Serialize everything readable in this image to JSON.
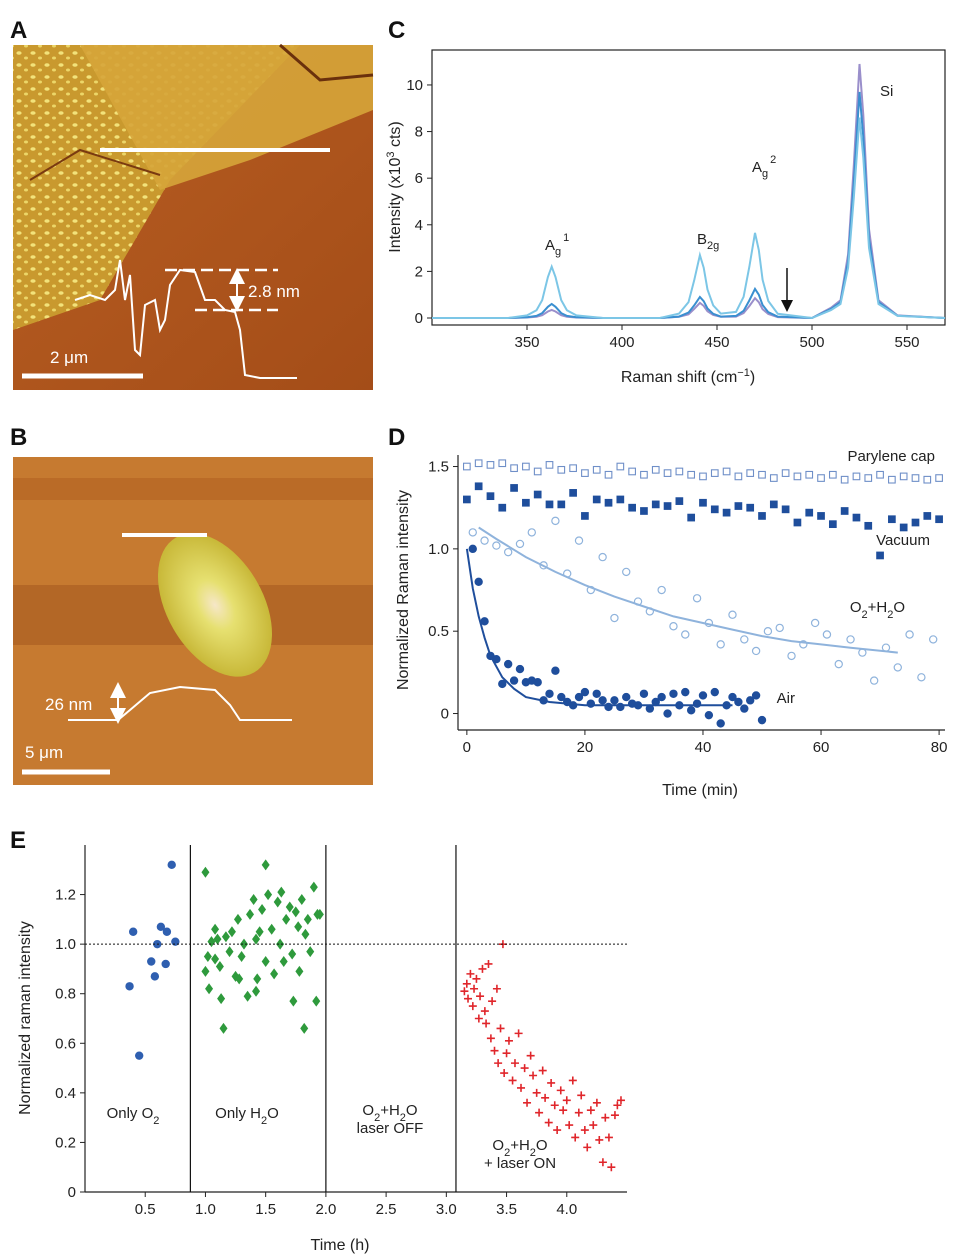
{
  "panels": {
    "A": {
      "label": "A",
      "scale_bar": "2 μm",
      "step_height": "2.8 nm"
    },
    "B": {
      "label": "B",
      "scale_bar": "5 μm",
      "step_height": "26 nm"
    }
  },
  "chart_data": [
    {
      "panel": "C",
      "type": "line",
      "x_label": [
        "Raman shift (cm",
        "−1",
        ")"
      ],
      "y_label": [
        "Intensity (x10",
        "3",
        " cts)"
      ],
      "x": [
        300,
        340,
        350,
        355,
        358,
        361,
        363,
        365,
        368,
        371,
        376,
        390,
        420,
        430,
        435,
        438,
        441,
        443,
        445,
        448,
        452,
        460,
        464,
        467,
        470,
        472,
        474,
        477,
        482,
        500,
        510,
        515,
        519,
        522,
        525,
        527,
        530,
        535,
        545,
        570
      ],
      "series": [
        {
          "color": "#7cc6e6",
          "values": [
            0,
            0,
            0.11,
            0.33,
            0.77,
            1.76,
            2.2,
            1.76,
            0.77,
            0.33,
            0.11,
            0,
            0,
            0.19,
            0.68,
            1.62,
            2.7,
            2.16,
            1.22,
            0.54,
            0.19,
            0.26,
            0.91,
            2.19,
            3.65,
            2.92,
            1.64,
            0.73,
            0.18,
            0,
            0.34,
            0.6,
            2.15,
            5.16,
            8.6,
            6.88,
            3.01,
            0.6,
            0.09,
            0
          ]
        },
        {
          "color": "#3a8fd0",
          "values": [
            0,
            0,
            0.03,
            0.09,
            0.21,
            0.48,
            0.6,
            0.48,
            0.21,
            0.09,
            0.03,
            0,
            0,
            0.06,
            0.23,
            0.54,
            0.9,
            0.72,
            0.41,
            0.18,
            0.06,
            0.09,
            0.31,
            0.75,
            1.25,
            1,
            0.56,
            0.25,
            0.06,
            0,
            0.39,
            0.68,
            2.43,
            5.82,
            9.7,
            7.76,
            3.4,
            0.68,
            0.1,
            0
          ]
        },
        {
          "color": "#9a8fcb",
          "values": [
            0,
            0,
            0.02,
            0.05,
            0.12,
            0.28,
            0.35,
            0.28,
            0.12,
            0.05,
            0.02,
            0,
            0,
            0.05,
            0.16,
            0.39,
            0.65,
            0.52,
            0.29,
            0.13,
            0.05,
            0.06,
            0.21,
            0.51,
            0.85,
            0.68,
            0.38,
            0.17,
            0.04,
            0,
            0.44,
            0.76,
            2.73,
            6.54,
            10.9,
            8.72,
            3.82,
            0.76,
            0.11,
            0
          ]
        }
      ],
      "peak_labels": [
        {
          "base": "A",
          "sub": "g",
          "sup": "1"
        },
        {
          "base": "B",
          "sub": "2g"
        },
        {
          "base": "A",
          "sub": "g",
          "sup": "2"
        },
        {
          "base": "Si"
        }
      ],
      "xlim": [
        300,
        570
      ],
      "ylim": [
        -0.3,
        11.5
      ],
      "xticks": [
        350,
        400,
        450,
        500,
        550
      ],
      "yticks": [
        0,
        2,
        4,
        6,
        8,
        10
      ]
    },
    {
      "panel": "D",
      "type": "scatter",
      "x_label": "Time (min)",
      "y_label": "Normalized Raman intensity",
      "series": [
        {
          "name": "Parylene cap",
          "color": "#6f8fc8",
          "marker": "square",
          "filled": false,
          "x": [
            0,
            2,
            4,
            6,
            8,
            10,
            12,
            14,
            16,
            18,
            20,
            22,
            24,
            26,
            28,
            30,
            32,
            34,
            36,
            38,
            40,
            42,
            44,
            46,
            48,
            50,
            52,
            54,
            56,
            58,
            60,
            62,
            64,
            66,
            68,
            70,
            72,
            74,
            76,
            78,
            80
          ],
          "values": [
            1.5,
            1.52,
            1.51,
            1.52,
            1.49,
            1.5,
            1.47,
            1.51,
            1.48,
            1.49,
            1.46,
            1.48,
            1.45,
            1.5,
            1.47,
            1.45,
            1.48,
            1.46,
            1.47,
            1.45,
            1.44,
            1.46,
            1.47,
            1.44,
            1.46,
            1.45,
            1.43,
            1.46,
            1.44,
            1.45,
            1.43,
            1.45,
            1.42,
            1.44,
            1.43,
            1.45,
            1.42,
            1.44,
            1.43,
            1.42,
            1.43
          ]
        },
        {
          "name": "Vacuum",
          "color": "#1f4e9c",
          "marker": "square",
          "filled": true,
          "x": [
            0,
            2,
            4,
            6,
            8,
            10,
            12,
            14,
            16,
            18,
            20,
            22,
            24,
            26,
            28,
            30,
            32,
            34,
            36,
            38,
            40,
            42,
            44,
            46,
            48,
            50,
            52,
            54,
            56,
            58,
            60,
            62,
            64,
            66,
            68,
            70,
            72,
            74,
            76,
            78,
            80
          ],
          "values": [
            1.3,
            1.38,
            1.32,
            1.25,
            1.37,
            1.28,
            1.33,
            1.27,
            1.27,
            1.34,
            1.2,
            1.3,
            1.28,
            1.3,
            1.25,
            1.23,
            1.27,
            1.26,
            1.29,
            1.19,
            1.28,
            1.24,
            1.22,
            1.26,
            1.25,
            1.2,
            1.27,
            1.24,
            1.16,
            1.22,
            1.2,
            1.15,
            1.23,
            1.19,
            1.14,
            0.96,
            1.18,
            1.13,
            1.16,
            1.2,
            1.18
          ]
        },
        {
          "name": "O2+H2O",
          "color": "#8fb3dc",
          "marker": "circle",
          "filled": false,
          "x": [
            1,
            3,
            5,
            7,
            9,
            11,
            13,
            15,
            17,
            19,
            21,
            23,
            25,
            27,
            29,
            31,
            33,
            35,
            37,
            39,
            41,
            43,
            45,
            47,
            49,
            51,
            53,
            55,
            57,
            59,
            61,
            63,
            65,
            67,
            69,
            71,
            73,
            75,
            77,
            79
          ],
          "values": [
            1.1,
            1.05,
            1.02,
            0.98,
            1.03,
            1.1,
            0.9,
            1.17,
            0.85,
            1.05,
            0.75,
            0.95,
            0.58,
            0.86,
            0.68,
            0.62,
            0.75,
            0.53,
            0.48,
            0.7,
            0.55,
            0.42,
            0.6,
            0.45,
            0.38,
            0.5,
            0.52,
            0.35,
            0.42,
            0.55,
            0.48,
            0.3,
            0.45,
            0.37,
            0.2,
            0.4,
            0.28,
            0.48,
            0.22,
            0.45
          ],
          "fit": {
            "x": [
              2,
              5,
              10,
              15,
              20,
              25,
              30,
              35,
              40,
              45,
              50,
              55,
              60,
              65,
              73
            ],
            "values": [
              1.13,
              1.06,
              0.95,
              0.86,
              0.78,
              0.71,
              0.65,
              0.59,
              0.55,
              0.51,
              0.47,
              0.44,
              0.42,
              0.4,
              0.37
            ]
          }
        },
        {
          "name": "Air",
          "color": "#1f4e9c",
          "marker": "circle",
          "filled": true,
          "x": [
            1,
            2,
            3,
            4,
            5,
            6,
            7,
            8,
            9,
            10,
            11,
            12,
            13,
            14,
            15,
            16,
            17,
            18,
            19,
            20,
            21,
            22,
            23,
            24,
            25,
            26,
            27,
            28,
            29,
            30,
            31,
            32,
            33,
            34,
            35,
            36,
            37,
            38,
            39,
            40,
            41,
            42,
            43,
            44,
            45,
            46,
            47,
            48,
            49,
            50
          ],
          "values": [
            1.0,
            0.8,
            0.56,
            0.35,
            0.33,
            0.18,
            0.3,
            0.2,
            0.27,
            0.19,
            0.2,
            0.19,
            0.08,
            0.12,
            0.26,
            0.1,
            0.07,
            0.05,
            0.1,
            0.13,
            0.06,
            0.12,
            0.08,
            0.04,
            0.08,
            0.04,
            0.1,
            0.06,
            0.05,
            0.12,
            0.03,
            0.07,
            0.1,
            0,
            0.12,
            0.05,
            0.13,
            0.02,
            0.06,
            0.11,
            -0.01,
            0.13,
            -0.06,
            0.05,
            0.1,
            0.07,
            0.03,
            0.08,
            0.11,
            -0.04
          ],
          "fit": {
            "x": [
              0,
              1,
              2,
              3,
              4,
              6,
              8,
              10,
              14,
              20,
              30,
              45
            ],
            "values": [
              1.0,
              0.76,
              0.59,
              0.46,
              0.35,
              0.22,
              0.15,
              0.1,
              0.07,
              0.05,
              0.05,
              0.05
            ]
          }
        }
      ],
      "xlim": [
        -1.5,
        81
      ],
      "ylim": [
        -0.1,
        1.57
      ],
      "xticks": [
        0,
        20,
        40,
        60,
        80
      ],
      "yticks": [
        0,
        0.5,
        {
          "value": 1,
          "label": "1.0"
        },
        1.5
      ]
    },
    {
      "panel": "E",
      "type": "scatter",
      "x_label": "Time (h)",
      "y_label": "Normalized raman intensity",
      "series": [
        {
          "color": "#2f5fb0",
          "marker": "circle",
          "filled": true,
          "x": [
            0.37,
            0.4,
            0.45,
            0.55,
            0.58,
            0.6,
            0.63,
            0.67,
            0.68,
            0.72,
            0.75
          ],
          "values": [
            0.83,
            1.05,
            0.55,
            0.93,
            0.87,
            1.0,
            1.07,
            0.92,
            1.05,
            1.32,
            1.01
          ]
        },
        {
          "color": "#2e9a3c",
          "marker": "diamond",
          "filled": true,
          "x": [
            1.0,
            1.0,
            1.02,
            1.03,
            1.05,
            1.08,
            1.1,
            1.12,
            1.13,
            1.15,
            1.17,
            1.2,
            1.22,
            1.25,
            1.27,
            1.3,
            1.32,
            1.35,
            1.37,
            1.4,
            1.42,
            1.43,
            1.45,
            1.47,
            1.5,
            1.5,
            1.52,
            1.55,
            1.57,
            1.6,
            1.62,
            1.63,
            1.65,
            1.67,
            1.7,
            1.72,
            1.73,
            1.75,
            1.77,
            1.78,
            1.8,
            1.82,
            1.83,
            1.85,
            1.87,
            1.9,
            1.92,
            1.93,
            1.95,
            1.42,
            1.28,
            1.08
          ],
          "values": [
            1.29,
            0.89,
            0.95,
            0.82,
            1.01,
            1.06,
            1.02,
            0.91,
            0.78,
            0.66,
            1.03,
            0.97,
            1.05,
            0.87,
            1.1,
            0.95,
            1.0,
            0.79,
            1.12,
            1.18,
            1.02,
            0.86,
            1.05,
            1.14,
            1.32,
            0.93,
            1.2,
            1.06,
            0.88,
            1.17,
            1.0,
            1.21,
            0.93,
            1.1,
            1.15,
            0.96,
            0.77,
            1.13,
            1.07,
            0.89,
            1.18,
            0.66,
            1.04,
            1.1,
            0.97,
            1.23,
            0.77,
            1.12,
            1.12,
            0.81,
            0.86,
            0.94
          ]
        },
        {
          "color": "#e0262b",
          "marker": "plus",
          "filled": true,
          "x": [
            3.15,
            3.17,
            3.18,
            3.2,
            3.22,
            3.23,
            3.25,
            3.27,
            3.28,
            3.3,
            3.32,
            3.33,
            3.35,
            3.37,
            3.38,
            3.4,
            3.42,
            3.43,
            3.45,
            3.47,
            3.48,
            3.5,
            3.52,
            3.55,
            3.57,
            3.6,
            3.62,
            3.65,
            3.67,
            3.7,
            3.72,
            3.75,
            3.77,
            3.8,
            3.82,
            3.85,
            3.87,
            3.9,
            3.92,
            3.95,
            3.97,
            4.0,
            4.02,
            4.05,
            4.07,
            4.1,
            4.12,
            4.15,
            4.17,
            4.2,
            4.22,
            4.25,
            4.27,
            4.3,
            4.32,
            4.35,
            4.37,
            4.4,
            4.42,
            4.45
          ],
          "values": [
            0.81,
            0.84,
            0.78,
            0.88,
            0.75,
            0.82,
            0.86,
            0.7,
            0.79,
            0.9,
            0.73,
            0.68,
            0.92,
            0.62,
            0.77,
            0.57,
            0.82,
            0.52,
            0.66,
            1.0,
            0.48,
            0.56,
            0.61,
            0.45,
            0.52,
            0.64,
            0.42,
            0.5,
            0.36,
            0.55,
            0.47,
            0.4,
            0.32,
            0.49,
            0.38,
            0.28,
            0.44,
            0.35,
            0.25,
            0.41,
            0.33,
            0.37,
            0.27,
            0.45,
            0.22,
            0.32,
            0.39,
            0.25,
            0.18,
            0.33,
            0.27,
            0.36,
            0.21,
            0.12,
            0.3,
            0.22,
            0.1,
            0.31,
            0.35,
            0.37
          ]
        }
      ],
      "reference_line": 1,
      "dividers": [
        0.875,
        2.0,
        3.08
      ],
      "regions": [
        [
          "Only O2"
        ],
        [
          "Only H2O"
        ],
        [
          "O2+H2O",
          "laser OFF"
        ],
        [
          "O2+H2O",
          "+ laser ON"
        ]
      ],
      "xlim": [
        0,
        4.5
      ],
      "ylim": [
        0,
        1.4
      ],
      "xticks": [
        0.5,
        {
          "value": 1,
          "label": "1.0"
        },
        1.5,
        {
          "value": 2,
          "label": "2.0"
        },
        2.5,
        {
          "value": 3,
          "label": "3.0"
        },
        3.5,
        {
          "value": 4,
          "label": "4.0"
        }
      ],
      "yticks": [
        0,
        0.2,
        0.4,
        0.6,
        0.8,
        {
          "value": 1,
          "label": "1.0"
        },
        1.2
      ]
    }
  ]
}
